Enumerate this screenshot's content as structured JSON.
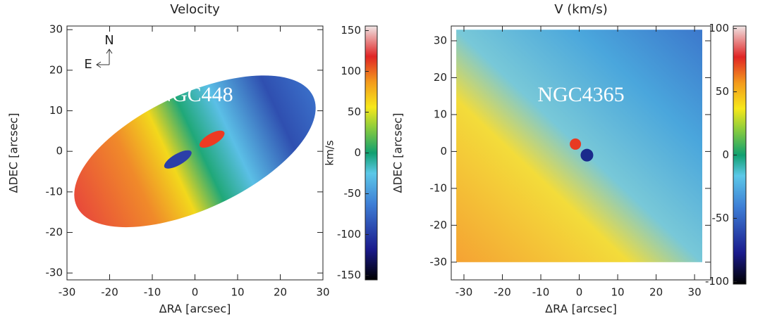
{
  "chart_data": [
    {
      "type": "map",
      "title": "Velocity",
      "annotation": "NGC448",
      "compass": [
        "N",
        "E"
      ],
      "xlabel": "ΔRA [arcsec]",
      "ylabel": "ΔDEC [arcsec]",
      "xlim": [
        -30,
        30
      ],
      "xticks": [
        -30,
        -20,
        -10,
        0,
        10,
        20,
        30
      ],
      "ylim": [
        -31.7,
        30.9
      ],
      "yticks": [
        -30,
        -20,
        -10,
        0,
        10,
        20,
        30
      ],
      "colorbar": {
        "label": "km/s",
        "lim": [
          -155.6,
          155.6
        ],
        "ticks": [
          -150,
          -100,
          -50,
          0,
          50,
          100,
          150
        ]
      }
    },
    {
      "type": "map",
      "title": "V (km/s)",
      "annotation": "NGC4365",
      "xlabel": "ΔRA [arcsec]",
      "ylabel": "ΔDEC [arcsec]",
      "xlim": [
        -33.3,
        34.2
      ],
      "xticks": [
        -30,
        -20,
        -10,
        0,
        10,
        20,
        30
      ],
      "ylim": [
        -34.8,
        34
      ],
      "yticks": [
        -30,
        -20,
        -10,
        0,
        10,
        20,
        30
      ],
      "colorbar": {
        "lim": [
          -102,
          102
        ],
        "ticks": [
          -100,
          -50,
          0,
          50,
          100
        ]
      }
    }
  ]
}
